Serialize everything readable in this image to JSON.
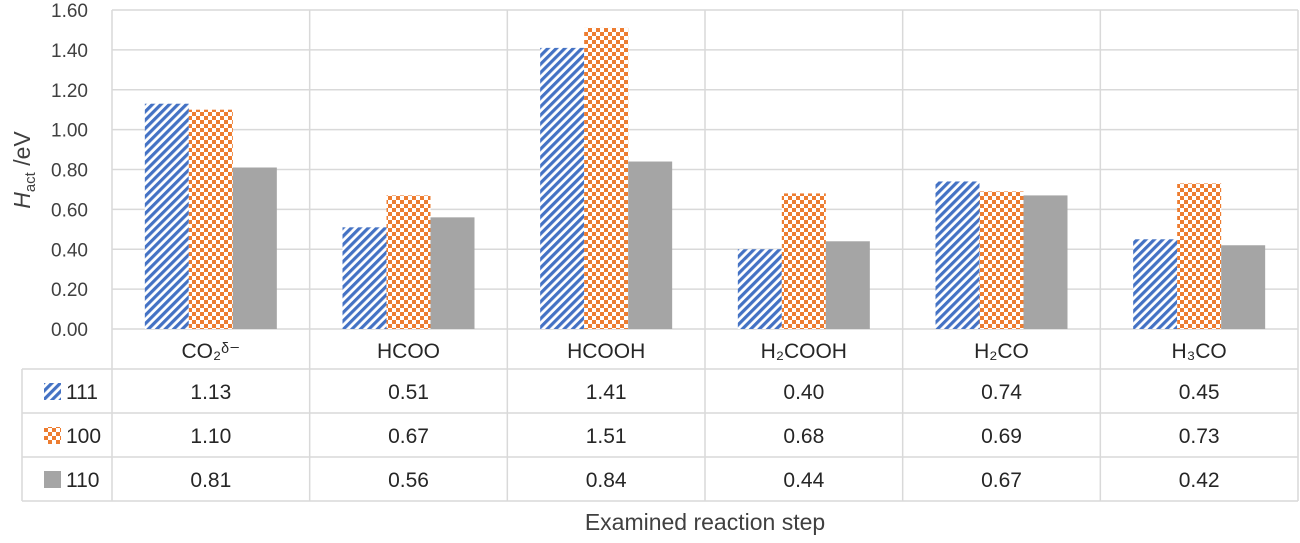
{
  "chart_data": {
    "type": "bar",
    "categories": [
      "CO₂ᵟ⁻",
      "HCOO",
      "HCOOH",
      "H₂COOH",
      "H₂CO",
      "H₃CO"
    ],
    "series": [
      {
        "name": "111",
        "values": [
          1.13,
          0.51,
          1.41,
          0.4,
          0.74,
          0.45
        ],
        "color": "#4472C4",
        "pattern": "diagonal-stripes"
      },
      {
        "name": "100",
        "values": [
          1.1,
          0.67,
          1.51,
          0.68,
          0.69,
          0.73
        ],
        "color": "#ED7D31",
        "pattern": "checkerboard"
      },
      {
        "name": "110",
        "values": [
          0.81,
          0.56,
          0.84,
          0.44,
          0.67,
          0.42
        ],
        "color": "#A5A5A5",
        "pattern": "solid"
      }
    ],
    "table_values": [
      [
        "1.13",
        "0.51",
        "1.41",
        "0.40",
        "0.74",
        "0.45"
      ],
      [
        "1.10",
        "0.67",
        "1.51",
        "0.68",
        "0.69",
        "0.73"
      ],
      [
        "0.81",
        "0.56",
        "0.84",
        "0.44",
        "0.67",
        "0.42"
      ]
    ],
    "ylabel_main": "H",
    "ylabel_sub": "act",
    "ylabel_unit": " /eV",
    "xlabel": "Examined reaction step",
    "ylim": [
      0,
      1.6
    ],
    "yticks": [
      "0.00",
      "0.20",
      "0.40",
      "0.60",
      "0.80",
      "1.00",
      "1.20",
      "1.40",
      "1.60"
    ],
    "grid": true,
    "legend": "data-table"
  }
}
